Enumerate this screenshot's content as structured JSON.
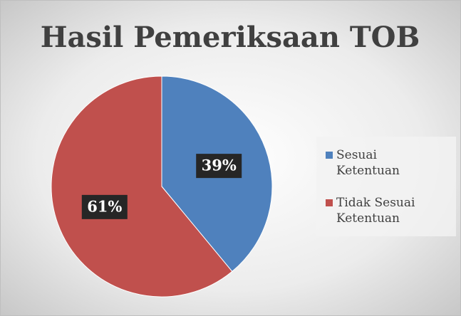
{
  "chart_data": {
    "type": "pie",
    "title": "Hasil Pemeriksaan TOB",
    "categories": [
      "Sesuai Ketentuan",
      "Tidak Sesuai Ketentuan"
    ],
    "values": [
      39,
      61
    ],
    "value_labels": [
      "39%",
      "61%"
    ],
    "colors": [
      "#4f81bd",
      "#c0504d"
    ],
    "legend": "right"
  }
}
